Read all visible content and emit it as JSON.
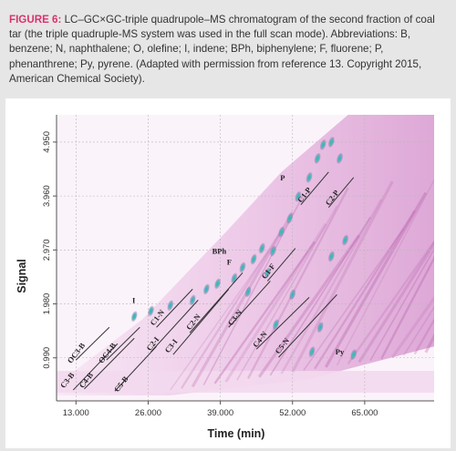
{
  "caption": {
    "label": "FIGURE 6:",
    "text": "LC–GC×GC-triple quadrupole–MS chromatogram of the second fraction of coal tar (the triple quadruple-MS system was used in the full scan mode). Abbreviations: B, benzene; N, naphthalene; O, olefine; I, indene; BPh, biphenylene; F, fluorene; P, phenanthrene; Py, pyrene. (Adapted with permission from reference 13. Copyright 2015, American Chemical Society)."
  },
  "colors": {
    "caption_label": "#d8336b",
    "background_band": "#f3d9ee",
    "stripe": "#b35aa8",
    "hot_spot": "#2a8fd0",
    "trend_line": "#333333"
  },
  "chart_data": {
    "type": "heatmap",
    "xlabel": "Time (min)",
    "ylabel": "Signal",
    "x_ticks": [
      "13.000",
      "26.000",
      "39.000",
      "52.000",
      "65.000"
    ],
    "x_tick_values": [
      13,
      26,
      39,
      52,
      65
    ],
    "y_ticks": [
      "0.990",
      "1.980",
      "2.970",
      "3.960",
      "4.950"
    ],
    "y_tick_values": [
      0.99,
      1.98,
      2.97,
      3.96,
      4.95
    ],
    "xlim": [
      9.5,
      77.5
    ],
    "ylim": [
      0.2,
      5.45
    ],
    "grid": true,
    "annotations": [
      {
        "text": "C3-B",
        "x": 11.8,
        "y": 0.55
      },
      {
        "text": "C4-B",
        "x": 15.2,
        "y": 0.55
      },
      {
        "text": "C5-B",
        "x": 21.5,
        "y": 0.48
      },
      {
        "text": "OC3-B",
        "x": 13.4,
        "y": 1.05
      },
      {
        "text": "OC4-B",
        "x": 19.0,
        "y": 1.05
      },
      {
        "text": "I",
        "x": 23.4,
        "y": 2.0
      },
      {
        "text": "C2-I",
        "x": 27.2,
        "y": 1.22
      },
      {
        "text": "C3-I",
        "x": 30.5,
        "y": 1.18
      },
      {
        "text": "C1-N",
        "x": 28.0,
        "y": 1.7
      },
      {
        "text": "C2-N",
        "x": 34.5,
        "y": 1.62
      },
      {
        "text": "C3-N",
        "x": 42.0,
        "y": 1.7
      },
      {
        "text": "C4-N",
        "x": 46.5,
        "y": 1.3
      },
      {
        "text": "C5-N",
        "x": 50.5,
        "y": 1.18
      },
      {
        "text": "BPh",
        "x": 38.8,
        "y": 2.9
      },
      {
        "text": "F",
        "x": 40.6,
        "y": 2.7
      },
      {
        "text": "C1-F",
        "x": 48.0,
        "y": 2.55
      },
      {
        "text": "P",
        "x": 50.2,
        "y": 4.25
      },
      {
        "text": "C1-P",
        "x": 54.5,
        "y": 3.95
      },
      {
        "text": "C2-P",
        "x": 59.5,
        "y": 3.9
      },
      {
        "text": "Py",
        "x": 60.5,
        "y": 1.05
      }
    ],
    "trend_lines": [
      {
        "from": [
          12.5,
          0.4
        ],
        "to": [
          20.5,
          1.25
        ]
      },
      {
        "from": [
          14.5,
          0.42
        ],
        "to": [
          23.5,
          1.35
        ]
      },
      {
        "from": [
          20.0,
          0.38
        ],
        "to": [
          27.5,
          1.2
        ]
      },
      {
        "from": [
          13.0,
          0.95
        ],
        "to": [
          19.0,
          1.55
        ]
      },
      {
        "from": [
          18.5,
          0.95
        ],
        "to": [
          24.5,
          1.55
        ]
      },
      {
        "from": [
          26.5,
          1.1
        ],
        "to": [
          35.0,
          2.05
        ]
      },
      {
        "from": [
          30.5,
          1.05
        ],
        "to": [
          40.5,
          2.25
        ]
      },
      {
        "from": [
          27.5,
          1.55
        ],
        "to": [
          34.0,
          2.25
        ]
      },
      {
        "from": [
          33.5,
          1.45
        ],
        "to": [
          43.0,
          2.55
        ]
      },
      {
        "from": [
          40.5,
          1.55
        ],
        "to": [
          48.0,
          2.4
        ]
      },
      {
        "from": [
          45.5,
          1.15
        ],
        "to": [
          55.0,
          2.1
        ]
      },
      {
        "from": [
          49.5,
          1.0
        ],
        "to": [
          60.0,
          2.15
        ]
      },
      {
        "from": [
          47.5,
          2.4
        ],
        "to": [
          52.5,
          3.0
        ]
      },
      {
        "from": [
          53.5,
          3.8
        ],
        "to": [
          58.5,
          4.4
        ]
      },
      {
        "from": [
          58.5,
          3.75
        ],
        "to": [
          63.0,
          4.3
        ]
      }
    ],
    "hot_spots": [
      {
        "x": 23.5,
        "y": 1.75
      },
      {
        "x": 26.5,
        "y": 1.85
      },
      {
        "x": 30.0,
        "y": 1.95
      },
      {
        "x": 34.0,
        "y": 2.05
      },
      {
        "x": 36.5,
        "y": 2.25
      },
      {
        "x": 38.5,
        "y": 2.35
      },
      {
        "x": 41.5,
        "y": 2.45
      },
      {
        "x": 43.0,
        "y": 2.65
      },
      {
        "x": 45.0,
        "y": 2.8
      },
      {
        "x": 46.5,
        "y": 3.0
      },
      {
        "x": 47.5,
        "y": 2.55
      },
      {
        "x": 48.5,
        "y": 2.95
      },
      {
        "x": 50.0,
        "y": 3.3
      },
      {
        "x": 51.5,
        "y": 3.55
      },
      {
        "x": 53.0,
        "y": 3.95
      },
      {
        "x": 55.0,
        "y": 4.3
      },
      {
        "x": 56.5,
        "y": 4.65
      },
      {
        "x": 57.5,
        "y": 4.9
      },
      {
        "x": 59.0,
        "y": 4.95
      },
      {
        "x": 60.5,
        "y": 4.65
      },
      {
        "x": 55.5,
        "y": 1.1
      },
      {
        "x": 57.0,
        "y": 1.55
      },
      {
        "x": 59.0,
        "y": 2.85
      },
      {
        "x": 61.5,
        "y": 3.15
      },
      {
        "x": 63.0,
        "y": 1.05
      },
      {
        "x": 49.0,
        "y": 1.6
      },
      {
        "x": 52.0,
        "y": 2.15
      },
      {
        "x": 44.0,
        "y": 2.2
      }
    ]
  }
}
